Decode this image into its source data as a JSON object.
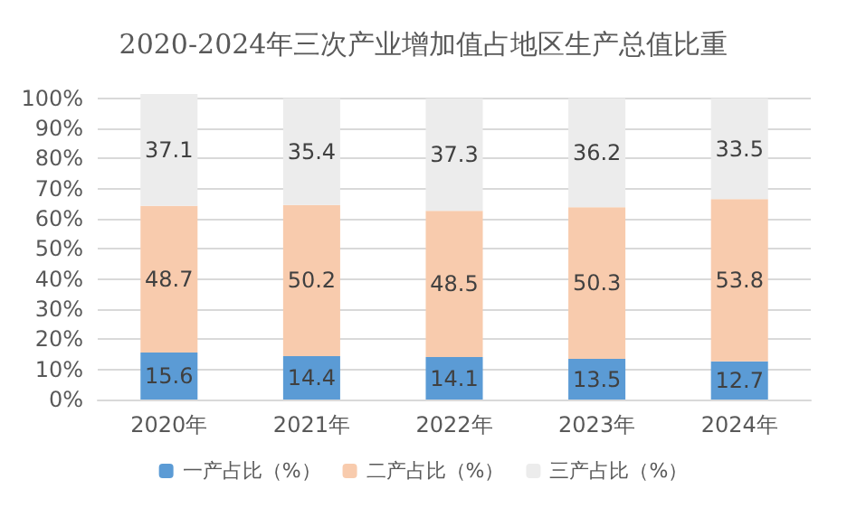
{
  "chart_data": {
    "type": "bar",
    "title": "2020-2024年三次产业增加值占地区生产总值比重",
    "categories": [
      "2020年",
      "2021年",
      "2022年",
      "2023年",
      "2024年"
    ],
    "stacked": true,
    "series": [
      {
        "name": "一产占比（%）",
        "color": "#5b9bd5",
        "values": [
          15.6,
          14.4,
          14.1,
          13.5,
          12.7
        ]
      },
      {
        "name": "二产占比（%）",
        "color": "#f8cbad",
        "values": [
          48.7,
          50.2,
          48.5,
          50.3,
          53.8
        ]
      },
      {
        "name": "三产占比（%）",
        "color": "#ececec",
        "values": [
          37.1,
          35.4,
          37.3,
          36.2,
          33.5
        ]
      }
    ],
    "ylim": [
      0,
      101.4
    ],
    "yticks": [
      {
        "value": 0,
        "label": "0%"
      },
      {
        "value": 10,
        "label": "10%"
      },
      {
        "value": 20,
        "label": "20%"
      },
      {
        "value": 30,
        "label": "30%"
      },
      {
        "value": 40,
        "label": "40%"
      },
      {
        "value": 50,
        "label": "50%"
      },
      {
        "value": 60,
        "label": "60%"
      },
      {
        "value": 70,
        "label": "70%"
      },
      {
        "value": 80,
        "label": "80%"
      },
      {
        "value": 90,
        "label": "90%"
      },
      {
        "value": 100,
        "label": "100%"
      }
    ],
    "grid": "y",
    "legend": "bottom",
    "data_labels": true
  }
}
